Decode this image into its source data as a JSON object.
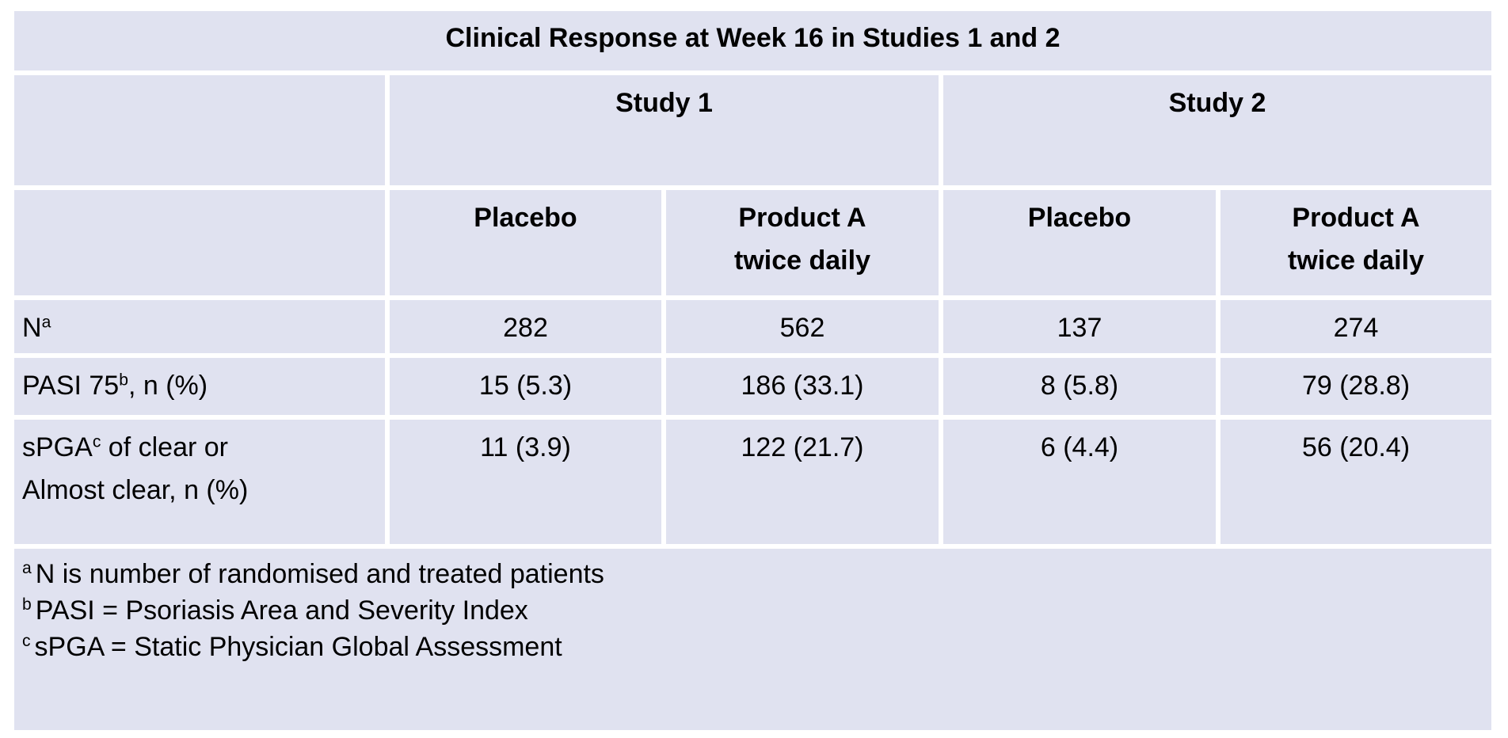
{
  "title": "Clinical Response at Week 16 in Studies 1 and 2",
  "colors": {
    "cell_bg": "#e0e2f0",
    "gridline": "#ffffff",
    "text": "#000000"
  },
  "group_headers": {
    "study1": "Study 1",
    "study2": "Study 2"
  },
  "col_headers": {
    "s1_placebo": {
      "line1": "Placebo",
      "line2": ""
    },
    "s1_product": {
      "line1": "Product A",
      "line2": "twice daily"
    },
    "s2_placebo": {
      "line1": "Placebo",
      "line2": ""
    },
    "s2_product": {
      "line1": "Product A",
      "line2": "twice daily"
    }
  },
  "rows": [
    {
      "label": {
        "pre": "N",
        "sup": "a",
        "post": "",
        "line2": ""
      },
      "values": [
        "282",
        "562",
        "137",
        "274"
      ]
    },
    {
      "label": {
        "pre": "PASI 75",
        "sup": "b",
        "post": ", n (%)",
        "line2": ""
      },
      "values": [
        "15 (5.3)",
        "186 (33.1)",
        "8 (5.8)",
        "79 (28.8)"
      ]
    },
    {
      "label": {
        "pre": "sPGA",
        "sup": "c",
        "post": " of clear or",
        "line2": "Almost clear, n (%)"
      },
      "values": [
        "11 (3.9)",
        "122 (21.7)",
        "6 (4.4)",
        "56 (20.4)"
      ]
    }
  ],
  "footnotes": [
    {
      "marker": "a",
      "text": "N is number of randomised and treated patients"
    },
    {
      "marker": "b",
      "text": "PASI = Psoriasis Area and Severity Index"
    },
    {
      "marker": "c",
      "text": "sPGA = Static Physician Global Assessment"
    }
  ]
}
